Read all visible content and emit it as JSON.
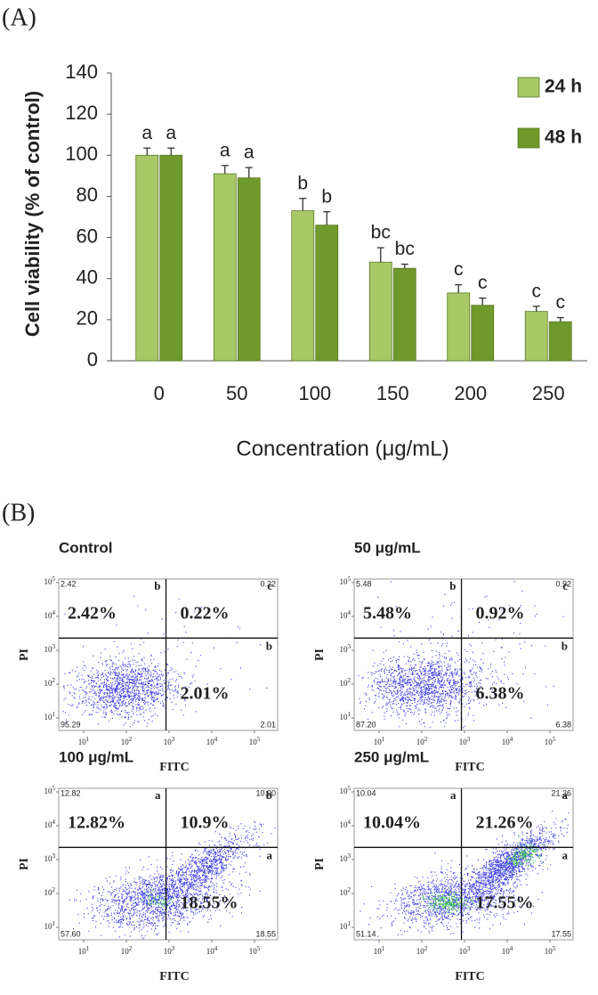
{
  "panel_labels": [
    "(A)",
    "(B)"
  ],
  "chart_data": {
    "type": "bar",
    "x_label": "Concentration (μg/mL)",
    "y_label": "Cell viability (% of control)",
    "categories": [
      "0",
      "50",
      "100",
      "150",
      "200",
      "250"
    ],
    "series": [
      {
        "name": "24 h",
        "color": "#a8c868",
        "values": [
          100,
          91,
          73,
          48,
          33,
          24
        ],
        "errors": [
          3.5,
          4,
          6,
          7,
          4,
          2.5
        ],
        "letters": [
          "a",
          "a",
          "b",
          "bc",
          "c",
          "c"
        ]
      },
      {
        "name": "48 h",
        "color": "#6f9a2b",
        "values": [
          100,
          89,
          66,
          45,
          27,
          19
        ],
        "errors": [
          3.5,
          5,
          6.5,
          2,
          3.5,
          2
        ],
        "letters": [
          "a",
          "a",
          "b",
          "bc",
          "c",
          "c"
        ]
      }
    ],
    "ylim": [
      0,
      140
    ],
    "yticks": [
      0,
      20,
      40,
      60,
      80,
      100,
      120,
      140
    ],
    "legend": "upper-right"
  },
  "flow_axes": {
    "x_label": "FITC",
    "y_label": "PI",
    "tick_base": "10",
    "tick_exponents": [
      "1",
      "2",
      "3",
      "4",
      "5"
    ]
  },
  "flow_panels": [
    {
      "title": "Control",
      "ul": "2.42%",
      "ur": "0.22%",
      "lr": "2.01%",
      "letter_ul": "b",
      "letter_ur": "c",
      "letter_lr": "b",
      "corner_ul": "2.42",
      "corner_ur": "0.22",
      "corner_ll": "95.29",
      "corner_lr": "2.01"
    },
    {
      "title": "50 μg/mL",
      "ul": "5.48%",
      "ur": "0.92%",
      "lr": "6.38%",
      "letter_ul": "b",
      "letter_ur": "c",
      "letter_lr": "b",
      "corner_ul": "5.48",
      "corner_ur": "0.92",
      "corner_ll": "87.20",
      "corner_lr": "6.38"
    },
    {
      "title": "100 μg/mL",
      "ul": "12.82%",
      "ur": "10.9%",
      "lr": "18.55%",
      "letter_ul": "a",
      "letter_ur": "b",
      "letter_lr": "a",
      "corner_ul": "12.82",
      "corner_ur": "10.90",
      "corner_ll": "57.60",
      "corner_lr": "18.55"
    },
    {
      "title": "250 μg/mL",
      "ul": "10.04%",
      "ur": "21.26%",
      "lr": "17.55%",
      "letter_ul": "a",
      "letter_ur": "a",
      "letter_lr": "a",
      "corner_ul": "10.04",
      "corner_ur": "21.26",
      "corner_ll": "51.14",
      "corner_lr": "17.55"
    }
  ]
}
